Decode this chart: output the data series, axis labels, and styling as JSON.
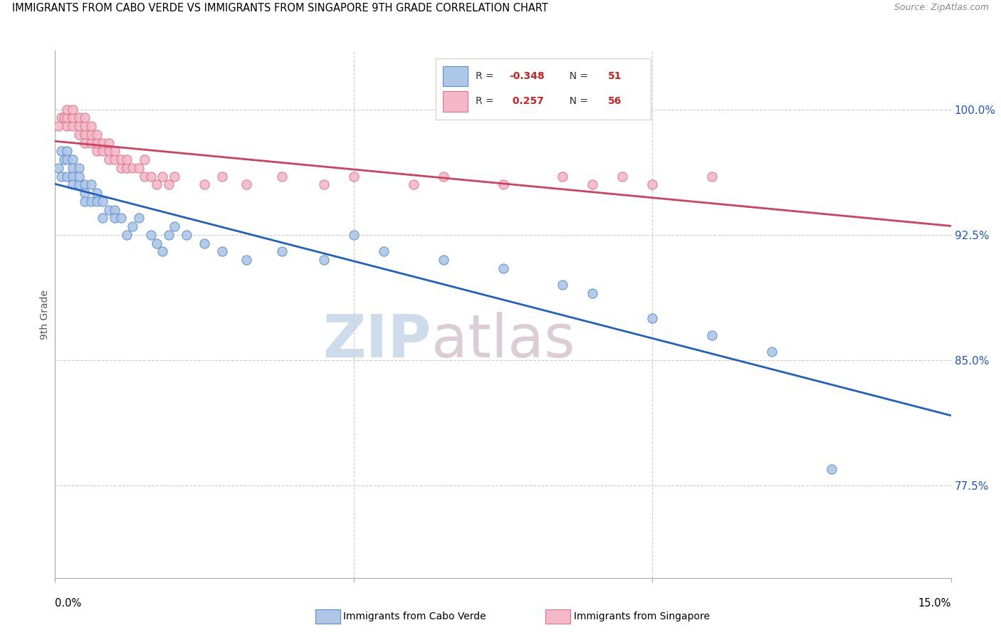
{
  "title": "IMMIGRANTS FROM CABO VERDE VS IMMIGRANTS FROM SINGAPORE 9TH GRADE CORRELATION CHART",
  "source": "Source: ZipAtlas.com",
  "ylabel": "9th Grade",
  "ytick_labels": [
    "77.5%",
    "85.0%",
    "92.5%",
    "100.0%"
  ],
  "ytick_values": [
    0.775,
    0.85,
    0.925,
    1.0
  ],
  "xmin": 0.0,
  "xmax": 0.15,
  "ymin": 0.72,
  "ymax": 1.035,
  "cabo_verde_R": -0.348,
  "cabo_verde_N": 51,
  "singapore_R": 0.257,
  "singapore_N": 56,
  "cabo_verde_color": "#aec6e8",
  "singapore_color": "#f4b8c8",
  "cabo_verde_edge_color": "#5b8fc9",
  "singapore_edge_color": "#d9748a",
  "cabo_verde_line_color": "#2060c0",
  "singapore_line_color": "#d04060",
  "watermark_zip_color": "#c5d5e8",
  "watermark_atlas_color": "#d5c5cc",
  "cabo_verde_x": [
    0.0005,
    0.001,
    0.001,
    0.0015,
    0.002,
    0.002,
    0.002,
    0.003,
    0.003,
    0.003,
    0.003,
    0.004,
    0.004,
    0.004,
    0.005,
    0.005,
    0.005,
    0.006,
    0.006,
    0.007,
    0.007,
    0.008,
    0.008,
    0.009,
    0.01,
    0.01,
    0.011,
    0.012,
    0.013,
    0.014,
    0.016,
    0.017,
    0.018,
    0.019,
    0.02,
    0.022,
    0.025,
    0.028,
    0.032,
    0.038,
    0.045,
    0.05,
    0.055,
    0.065,
    0.075,
    0.085,
    0.09,
    0.1,
    0.11,
    0.12,
    0.13
  ],
  "cabo_verde_y": [
    0.965,
    0.975,
    0.96,
    0.97,
    0.975,
    0.97,
    0.96,
    0.97,
    0.965,
    0.96,
    0.955,
    0.965,
    0.955,
    0.96,
    0.955,
    0.95,
    0.945,
    0.955,
    0.945,
    0.95,
    0.945,
    0.945,
    0.935,
    0.94,
    0.94,
    0.935,
    0.935,
    0.925,
    0.93,
    0.935,
    0.925,
    0.92,
    0.915,
    0.925,
    0.93,
    0.925,
    0.92,
    0.915,
    0.91,
    0.915,
    0.91,
    0.925,
    0.915,
    0.91,
    0.905,
    0.895,
    0.89,
    0.875,
    0.865,
    0.855,
    0.785
  ],
  "singapore_x": [
    0.0005,
    0.001,
    0.0015,
    0.002,
    0.002,
    0.002,
    0.003,
    0.003,
    0.003,
    0.004,
    0.004,
    0.004,
    0.005,
    0.005,
    0.005,
    0.005,
    0.006,
    0.006,
    0.006,
    0.007,
    0.007,
    0.007,
    0.008,
    0.008,
    0.009,
    0.009,
    0.009,
    0.01,
    0.01,
    0.011,
    0.011,
    0.012,
    0.012,
    0.013,
    0.014,
    0.015,
    0.015,
    0.016,
    0.017,
    0.018,
    0.019,
    0.02,
    0.025,
    0.028,
    0.032,
    0.038,
    0.045,
    0.05,
    0.06,
    0.065,
    0.075,
    0.085,
    0.09,
    0.095,
    0.1,
    0.11
  ],
  "singapore_y": [
    0.99,
    0.995,
    0.995,
    0.99,
    0.995,
    1.0,
    0.99,
    0.995,
    1.0,
    0.985,
    0.99,
    0.995,
    0.985,
    0.99,
    0.98,
    0.995,
    0.98,
    0.985,
    0.99,
    0.975,
    0.98,
    0.985,
    0.975,
    0.98,
    0.97,
    0.975,
    0.98,
    0.97,
    0.975,
    0.965,
    0.97,
    0.965,
    0.97,
    0.965,
    0.965,
    0.96,
    0.97,
    0.96,
    0.955,
    0.96,
    0.955,
    0.96,
    0.955,
    0.96,
    0.955,
    0.96,
    0.955,
    0.96,
    0.955,
    0.96,
    0.955,
    0.96,
    0.955,
    0.96,
    0.955,
    0.96
  ]
}
